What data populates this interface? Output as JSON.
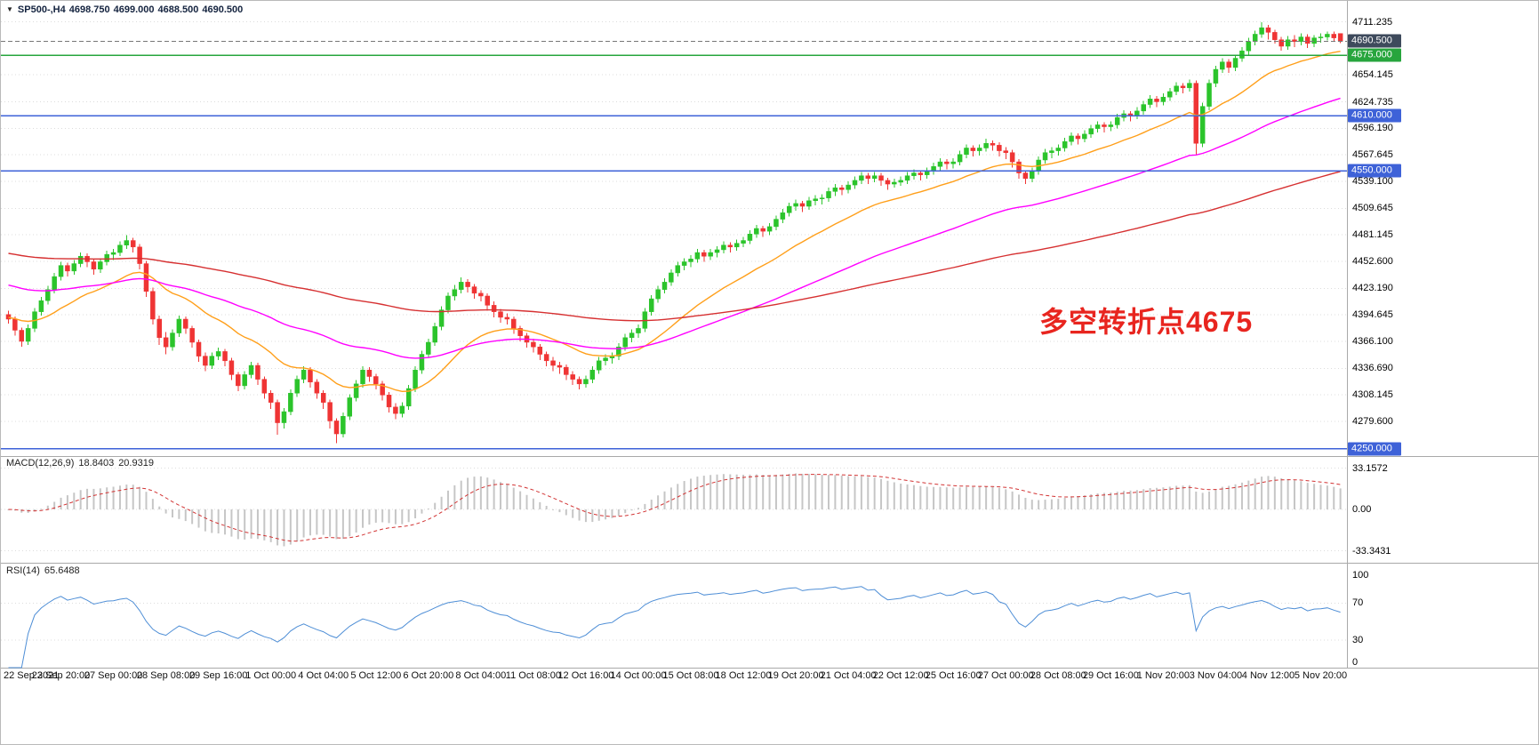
{
  "header": {
    "symbol": "SP500-,H4",
    "open": "4698.750",
    "high": "4699.000",
    "low": "4688.500",
    "close": "4690.500"
  },
  "annotation": {
    "text": "多空转折点4675",
    "color": "#e8251f"
  },
  "indicators": {
    "macd": {
      "label": "MACD(12,26,9)",
      "value_main": "18.8403",
      "value_signal": "20.9319"
    },
    "rsi": {
      "label": "RSI(14)",
      "value": "65.6488"
    }
  },
  "price_axis": {
    "labels": [
      "4711.235",
      "4654.145",
      "4624.735",
      "4596.190",
      "4567.645",
      "4539.100",
      "4509.645",
      "4481.145",
      "4452.600",
      "4423.190",
      "4394.645",
      "4366.100",
      "4336.690",
      "4308.145",
      "4279.600"
    ],
    "last_price": {
      "label": "4690.500",
      "value": 4690.5,
      "badge_color": "#3e4a5c",
      "line_color": "#777777"
    },
    "levels": [
      {
        "label": "4675.000",
        "value": 4675,
        "color": "#27a53d"
      },
      {
        "label": "4610.000",
        "value": 4610,
        "color": "#3e62d8"
      },
      {
        "label": "4550.000",
        "value": 4550,
        "color": "#3e62d8"
      },
      {
        "label": "4250.000",
        "value": 4250,
        "color": "#3e62d8"
      }
    ]
  },
  "chart_data": {
    "type": "candlestick",
    "title": "SP500-,H4",
    "symbol": "SP500-",
    "timeframe": "H4",
    "ylim": [
      4242,
      4734
    ],
    "bull_color": "#2bc42b",
    "bear_color": "#ef3434",
    "candles_per_label": 8,
    "time_labels": [
      "22 Sep 2021",
      "23 Sep 20:00",
      "27 Sep 00:00",
      "28 Sep 08:00",
      "29 Sep 16:00",
      "1 Oct 00:00",
      "4 Oct 04:00",
      "5 Oct 12:00",
      "6 Oct 20:00",
      "8 Oct 04:00",
      "11 Oct 08:00",
      "12 Oct 16:00",
      "14 Oct 00:00",
      "15 Oct 08:00",
      "18 Oct 12:00",
      "19 Oct 20:00",
      "21 Oct 04:00",
      "22 Oct 12:00",
      "25 Oct 16:00",
      "27 Oct 00:00",
      "28 Oct 08:00",
      "29 Oct 16:00",
      "1 Nov 20:00",
      "3 Nov 04:00",
      "4 Nov 12:00",
      "5 Nov 20:00"
    ],
    "candles": [
      [
        4395,
        4399,
        4385,
        4390
      ],
      [
        4390,
        4393,
        4372,
        4378
      ],
      [
        4378,
        4381,
        4360,
        4366
      ],
      [
        4366,
        4384,
        4362,
        4380
      ],
      [
        4380,
        4402,
        4376,
        4398
      ],
      [
        4398,
        4414,
        4394,
        4410
      ],
      [
        4410,
        4426,
        4406,
        4422
      ],
      [
        4422,
        4440,
        4418,
        4436
      ],
      [
        4436,
        4452,
        4432,
        4448
      ],
      [
        4448,
        4451,
        4436,
        4442
      ],
      [
        4442,
        4454,
        4438,
        4450
      ],
      [
        4450,
        4462,
        4446,
        4458
      ],
      [
        4458,
        4461,
        4446,
        4452
      ],
      [
        4452,
        4455,
        4438,
        4444
      ],
      [
        4444,
        4456,
        4440,
        4452
      ],
      [
        4452,
        4464,
        4448,
        4460
      ],
      [
        4460,
        4466,
        4454,
        4462
      ],
      [
        4462,
        4474,
        4458,
        4470
      ],
      [
        4470,
        4481,
        4466,
        4475
      ],
      [
        4475,
        4478,
        4462,
        4468
      ],
      [
        4468,
        4471,
        4444,
        4450
      ],
      [
        4450,
        4453,
        4414,
        4420
      ],
      [
        4420,
        4424,
        4384,
        4390
      ],
      [
        4390,
        4394,
        4362,
        4370
      ],
      [
        4370,
        4376,
        4352,
        4360
      ],
      [
        4360,
        4379,
        4356,
        4375
      ],
      [
        4375,
        4394,
        4371,
        4390
      ],
      [
        4390,
        4393,
        4374,
        4380
      ],
      [
        4380,
        4383,
        4359,
        4365
      ],
      [
        4365,
        4368,
        4344,
        4350
      ],
      [
        4350,
        4354,
        4334,
        4340
      ],
      [
        4340,
        4354,
        4336,
        4350
      ],
      [
        4350,
        4359,
        4346,
        4355
      ],
      [
        4355,
        4358,
        4339,
        4345
      ],
      [
        4345,
        4348,
        4324,
        4330
      ],
      [
        4330,
        4333,
        4312,
        4318
      ],
      [
        4318,
        4334,
        4314,
        4330
      ],
      [
        4330,
        4344,
        4326,
        4340
      ],
      [
        4340,
        4343,
        4319,
        4325
      ],
      [
        4325,
        4328,
        4304,
        4310
      ],
      [
        4310,
        4313,
        4293,
        4300
      ],
      [
        4300,
        4303,
        4265,
        4278
      ],
      [
        4278,
        4294,
        4272,
        4290
      ],
      [
        4290,
        4314,
        4286,
        4310
      ],
      [
        4310,
        4329,
        4306,
        4325
      ],
      [
        4325,
        4339,
        4321,
        4335
      ],
      [
        4335,
        4338,
        4316,
        4322
      ],
      [
        4322,
        4325,
        4304,
        4310
      ],
      [
        4310,
        4313,
        4293,
        4300
      ],
      [
        4300,
        4303,
        4272,
        4280
      ],
      [
        4280,
        4283,
        4256,
        4266
      ],
      [
        4266,
        4289,
        4262,
        4285
      ],
      [
        4285,
        4309,
        4281,
        4305
      ],
      [
        4305,
        4324,
        4301,
        4320
      ],
      [
        4320,
        4339,
        4316,
        4335
      ],
      [
        4335,
        4338,
        4322,
        4328
      ],
      [
        4328,
        4331,
        4314,
        4320
      ],
      [
        4320,
        4323,
        4302,
        4308
      ],
      [
        4308,
        4311,
        4289,
        4295
      ],
      [
        4295,
        4299,
        4282,
        4288
      ],
      [
        4288,
        4300,
        4284,
        4296
      ],
      [
        4296,
        4319,
        4292,
        4315
      ],
      [
        4315,
        4339,
        4311,
        4335
      ],
      [
        4335,
        4356,
        4331,
        4352
      ],
      [
        4352,
        4369,
        4348,
        4365
      ],
      [
        4365,
        4386,
        4361,
        4382
      ],
      [
        4382,
        4404,
        4378,
        4400
      ],
      [
        4400,
        4419,
        4396,
        4415
      ],
      [
        4415,
        4427,
        4410,
        4422
      ],
      [
        4422,
        4435,
        4418,
        4430
      ],
      [
        4430,
        4433,
        4419,
        4425
      ],
      [
        4425,
        4428,
        4412,
        4418
      ],
      [
        4418,
        4421,
        4409,
        4415
      ],
      [
        4415,
        4418,
        4399,
        4405
      ],
      [
        4405,
        4409,
        4392,
        4398
      ],
      [
        4398,
        4401,
        4386,
        4392
      ],
      [
        4392,
        4396,
        4384,
        4390
      ],
      [
        4390,
        4393,
        4374,
        4380
      ],
      [
        4380,
        4383,
        4366,
        4372
      ],
      [
        4372,
        4375,
        4359,
        4365
      ],
      [
        4365,
        4369,
        4354,
        4360
      ],
      [
        4360,
        4363,
        4346,
        4352
      ],
      [
        4352,
        4355,
        4339,
        4345
      ],
      [
        4345,
        4349,
        4334,
        4340
      ],
      [
        4340,
        4344,
        4331,
        4338
      ],
      [
        4338,
        4341,
        4324,
        4330
      ],
      [
        4330,
        4334,
        4319,
        4325
      ],
      [
        4325,
        4328,
        4314,
        4320
      ],
      [
        4320,
        4329,
        4316,
        4325
      ],
      [
        4325,
        4339,
        4321,
        4335
      ],
      [
        4335,
        4349,
        4331,
        4345
      ],
      [
        4345,
        4352,
        4340,
        4348
      ],
      [
        4348,
        4354,
        4342,
        4350
      ],
      [
        4350,
        4364,
        4346,
        4360
      ],
      [
        4360,
        4374,
        4356,
        4370
      ],
      [
        4370,
        4379,
        4365,
        4375
      ],
      [
        4375,
        4384,
        4370,
        4380
      ],
      [
        4380,
        4402,
        4376,
        4398
      ],
      [
        4398,
        4416,
        4394,
        4412
      ],
      [
        4412,
        4426,
        4408,
        4422
      ],
      [
        4422,
        4434,
        4418,
        4430
      ],
      [
        4430,
        4444,
        4426,
        4440
      ],
      [
        4440,
        4452,
        4436,
        4448
      ],
      [
        4448,
        4456,
        4443,
        4452
      ],
      [
        4452,
        4459,
        4446,
        4455
      ],
      [
        4455,
        4466,
        4451,
        4462
      ],
      [
        4462,
        4465,
        4452,
        4458
      ],
      [
        4458,
        4466,
        4454,
        4462
      ],
      [
        4462,
        4469,
        4457,
        4465
      ],
      [
        4465,
        4474,
        4461,
        4470
      ],
      [
        4470,
        4473,
        4462,
        4468
      ],
      [
        4468,
        4476,
        4464,
        4472
      ],
      [
        4472,
        4479,
        4468,
        4475
      ],
      [
        4475,
        4486,
        4471,
        4482
      ],
      [
        4482,
        4492,
        4478,
        4488
      ],
      [
        4488,
        4491,
        4479,
        4485
      ],
      [
        4485,
        4494,
        4481,
        4490
      ],
      [
        4490,
        4502,
        4486,
        4498
      ],
      [
        4498,
        4509,
        4494,
        4505
      ],
      [
        4505,
        4516,
        4501,
        4512
      ],
      [
        4512,
        4519,
        4507,
        4515
      ],
      [
        4515,
        4518,
        4506,
        4512
      ],
      [
        4512,
        4522,
        4508,
        4518
      ],
      [
        4518,
        4524,
        4513,
        4520
      ],
      [
        4520,
        4525,
        4514,
        4521
      ],
      [
        4521,
        4532,
        4517,
        4528
      ],
      [
        4528,
        4536,
        4523,
        4532
      ],
      [
        4532,
        4535,
        4524,
        4530
      ],
      [
        4530,
        4539,
        4526,
        4535
      ],
      [
        4535,
        4544,
        4531,
        4540
      ],
      [
        4540,
        4549,
        4536,
        4545
      ],
      [
        4545,
        4548,
        4536,
        4542
      ],
      [
        4542,
        4549,
        4538,
        4545
      ],
      [
        4545,
        4548,
        4534,
        4540
      ],
      [
        4540,
        4543,
        4530,
        4536
      ],
      [
        4536,
        4542,
        4532,
        4538
      ],
      [
        4538,
        4544,
        4534,
        4540
      ],
      [
        4540,
        4549,
        4536,
        4545
      ],
      [
        4545,
        4552,
        4541,
        4548
      ],
      [
        4548,
        4551,
        4540,
        4546
      ],
      [
        4546,
        4554,
        4542,
        4550
      ],
      [
        4550,
        4559,
        4546,
        4555
      ],
      [
        4555,
        4564,
        4551,
        4560
      ],
      [
        4560,
        4563,
        4552,
        4558
      ],
      [
        4558,
        4564,
        4553,
        4560
      ],
      [
        4560,
        4572,
        4556,
        4568
      ],
      [
        4568,
        4579,
        4564,
        4575
      ],
      [
        4575,
        4578,
        4566,
        4572
      ],
      [
        4572,
        4579,
        4567,
        4575
      ],
      [
        4575,
        4585,
        4571,
        4580
      ],
      [
        4580,
        4583,
        4572,
        4578
      ],
      [
        4578,
        4581,
        4566,
        4572
      ],
      [
        4572,
        4576,
        4563,
        4570
      ],
      [
        4570,
        4573,
        4554,
        4560
      ],
      [
        4560,
        4563,
        4542,
        4548
      ],
      [
        4548,
        4551,
        4536,
        4542
      ],
      [
        4542,
        4554,
        4538,
        4550
      ],
      [
        4550,
        4566,
        4546,
        4562
      ],
      [
        4562,
        4574,
        4558,
        4570
      ],
      [
        4570,
        4576,
        4564,
        4572
      ],
      [
        4572,
        4579,
        4567,
        4575
      ],
      [
        4575,
        4586,
        4571,
        4582
      ],
      [
        4582,
        4592,
        4578,
        4588
      ],
      [
        4588,
        4591,
        4579,
        4585
      ],
      [
        4585,
        4594,
        4581,
        4590
      ],
      [
        4590,
        4600,
        4586,
        4596
      ],
      [
        4596,
        4604,
        4592,
        4600
      ],
      [
        4600,
        4603,
        4592,
        4598
      ],
      [
        4598,
        4604,
        4593,
        4600
      ],
      [
        4600,
        4612,
        4596,
        4608
      ],
      [
        4608,
        4616,
        4604,
        4612
      ],
      [
        4612,
        4615,
        4604,
        4610
      ],
      [
        4610,
        4619,
        4606,
        4615
      ],
      [
        4615,
        4626,
        4611,
        4622
      ],
      [
        4622,
        4632,
        4618,
        4628
      ],
      [
        4628,
        4631,
        4619,
        4625
      ],
      [
        4625,
        4634,
        4621,
        4630
      ],
      [
        4630,
        4640,
        4626,
        4636
      ],
      [
        4636,
        4646,
        4632,
        4642
      ],
      [
        4642,
        4645,
        4634,
        4640
      ],
      [
        4640,
        4649,
        4636,
        4645
      ],
      [
        4645,
        4648,
        4568,
        4580
      ],
      [
        4580,
        4624,
        4576,
        4620
      ],
      [
        4620,
        4649,
        4616,
        4645
      ],
      [
        4645,
        4664,
        4641,
        4660
      ],
      [
        4660,
        4672,
        4656,
        4668
      ],
      [
        4668,
        4671,
        4656,
        4662
      ],
      [
        4662,
        4676,
        4658,
        4672
      ],
      [
        4672,
        4684,
        4668,
        4680
      ],
      [
        4680,
        4694,
        4676,
        4690
      ],
      [
        4690,
        4702,
        4686,
        4698
      ],
      [
        4698,
        4711,
        4694,
        4705
      ],
      [
        4705,
        4708,
        4692,
        4700
      ],
      [
        4700,
        4703,
        4688,
        4692
      ],
      [
        4692,
        4695,
        4680,
        4685
      ],
      [
        4685,
        4696,
        4681,
        4692
      ],
      [
        4692,
        4697,
        4684,
        4690
      ],
      [
        4690,
        4699,
        4686,
        4695
      ],
      [
        4695,
        4698,
        4683,
        4688
      ],
      [
        4688,
        4697,
        4684,
        4694
      ],
      [
        4694,
        4699,
        4689,
        4695
      ],
      [
        4695,
        4701,
        4691,
        4698
      ],
      [
        4698,
        4701,
        4690,
        4694
      ],
      [
        4698.75,
        4699,
        4688.5,
        4690.5
      ]
    ],
    "moving_averages": [
      {
        "name": "fast-ma",
        "period": 21,
        "seed": 4392,
        "color": "#ff9f1a"
      },
      {
        "name": "mid-ma",
        "period": 60,
        "seed": 4428,
        "color": "#ff00ff"
      },
      {
        "name": "slow-ma",
        "period": 150,
        "seed": 4462,
        "color": "#d63031"
      }
    ],
    "macd": {
      "fast": 12,
      "slow": 26,
      "signal_period": 9,
      "histogram_color": "#c6c6c6",
      "signal_color": "#d23333",
      "axis": [
        {
          "label": "33.1572",
          "value": 33.1572
        },
        {
          "label": "0.00",
          "value": 0
        },
        {
          "label": "-33.3431",
          "value": -33.3431
        }
      ]
    },
    "rsi": {
      "period": 14,
      "color": "#4e8ed6",
      "axis": [
        {
          "label": "100",
          "value": 100
        },
        {
          "label": "70",
          "value": 70
        },
        {
          "label": "30",
          "value": 30
        },
        {
          "label": "0",
          "value": 0
        }
      ],
      "levels": [
        70,
        30
      ]
    }
  }
}
